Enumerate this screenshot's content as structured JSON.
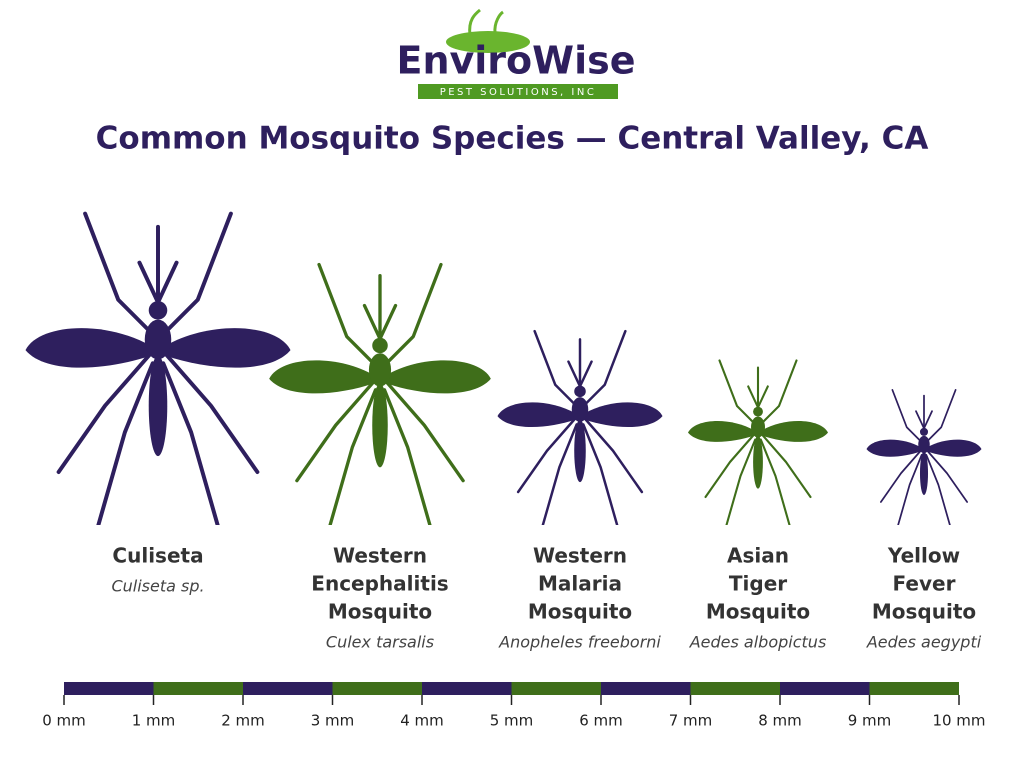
{
  "logo": {
    "name": "EnviroWise",
    "tagline": "PEST SOLUTIONS, INC"
  },
  "title": "Common Mosquito Species — Central Valley, CA",
  "species": [
    {
      "name_lines": [
        "Culiseta"
      ],
      "latin": "Culiseta sp."
    },
    {
      "name_lines": [
        "Western",
        "Encephalitis",
        "Mosquito"
      ],
      "latin": "Culex tarsalis"
    },
    {
      "name_lines": [
        "Western",
        "Malaria",
        "Mosquito"
      ],
      "latin": "Anopheles freeborni"
    },
    {
      "name_lines": [
        "Asian",
        "Tiger",
        "Mosquito"
      ],
      "latin": "Aedes albopictus"
    },
    {
      "name_lines": [
        "Yellow",
        "Fever",
        "Mosquito"
      ],
      "latin": "Aedes aegypti"
    }
  ],
  "scale_labels": [
    "0 mm",
    "1 mm",
    "2 mm",
    "3 mm",
    "4 mm",
    "5 mm",
    "6 mm",
    "7 mm",
    "8 mm",
    "9 mm",
    "10 mm"
  ]
}
